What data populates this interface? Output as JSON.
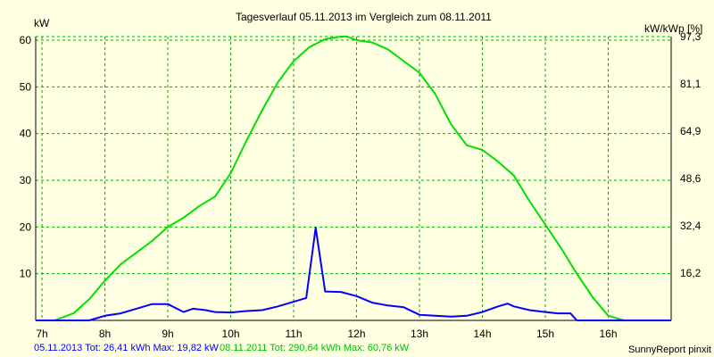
{
  "chart_data": {
    "type": "line",
    "title": "Tagesverlauf 05.11.2013 im Vergleich zum 08.11.2011",
    "y_left_unit": "kW",
    "y_right_unit": "kW/kWp [%]",
    "x_ticks": [
      "7h",
      "8h",
      "9h",
      "10h",
      "11h",
      "12h",
      "13h",
      "14h",
      "15h",
      "16h"
    ],
    "y_left_ticks": [
      "10",
      "20",
      "30",
      "40",
      "50",
      "60"
    ],
    "y_right_ticks": [
      "16,2",
      "32,4",
      "48,6",
      "64,9",
      "81,1",
      "97,3"
    ],
    "xlim": [
      6.9,
      17.0
    ],
    "ylim": [
      0,
      60.76
    ],
    "grid": true,
    "series": [
      {
        "name": "05.11.2013",
        "color": "#0000ff",
        "x": [
          6.9,
          7.5,
          7.75,
          8.0,
          8.25,
          8.5,
          8.75,
          9.0,
          9.25,
          9.4,
          9.6,
          9.75,
          10.0,
          10.25,
          10.5,
          10.75,
          11.0,
          11.2,
          11.35,
          11.5,
          11.75,
          12.0,
          12.25,
          12.5,
          12.75,
          13.0,
          13.25,
          13.5,
          13.75,
          14.0,
          14.25,
          14.4,
          14.5,
          14.75,
          15.0,
          15.2,
          15.4,
          15.5,
          15.75,
          16.0,
          16.25,
          16.5,
          16.75,
          17.0
        ],
        "y": [
          0,
          0,
          0,
          1,
          1.5,
          2.5,
          3.5,
          3.5,
          1.8,
          2.5,
          2.2,
          1.8,
          1.7,
          2.0,
          2.2,
          3.0,
          4.0,
          4.8,
          19.82,
          6.2,
          6.1,
          5.2,
          3.8,
          3.2,
          2.8,
          1.2,
          1.0,
          0.8,
          1.0,
          1.8,
          3.0,
          3.6,
          3.0,
          2.2,
          1.8,
          1.5,
          1.5,
          0,
          0,
          0,
          0,
          0,
          0,
          0
        ]
      },
      {
        "name": "08.11.2011",
        "color": "#00e000",
        "x": [
          6.9,
          7.2,
          7.5,
          7.75,
          8.0,
          8.25,
          8.5,
          8.75,
          9.0,
          9.25,
          9.5,
          9.75,
          10.0,
          10.25,
          10.5,
          10.75,
          11.0,
          11.25,
          11.5,
          11.75,
          11.85,
          12.0,
          12.25,
          12.5,
          12.75,
          13.0,
          13.25,
          13.5,
          13.75,
          14.0,
          14.25,
          14.5,
          14.75,
          15.0,
          15.25,
          15.5,
          15.75,
          16.0,
          16.25,
          16.5,
          16.75,
          17.0
        ],
        "y": [
          0,
          0,
          1.5,
          4.5,
          8.5,
          12.0,
          14.5,
          17.0,
          20.0,
          22.0,
          24.5,
          26.5,
          31.5,
          38.5,
          45.0,
          51.0,
          55.5,
          58.5,
          60.2,
          60.76,
          60.76,
          60.0,
          59.5,
          58.0,
          55.5,
          53.0,
          48.5,
          42.0,
          37.5,
          36.5,
          34.0,
          31.0,
          25.5,
          20.5,
          15.5,
          10.0,
          5.0,
          1.0,
          0,
          0,
          0,
          0
        ]
      }
    ]
  },
  "footer": {
    "blue_line": "05.11.2013 Tot: 26,41 kWh Max: 19,82 kW",
    "green_line": "08.11.2011 Tot: 290,64 kWh Max: 60,76 kW",
    "credit": "SunnyReport pinxit"
  }
}
